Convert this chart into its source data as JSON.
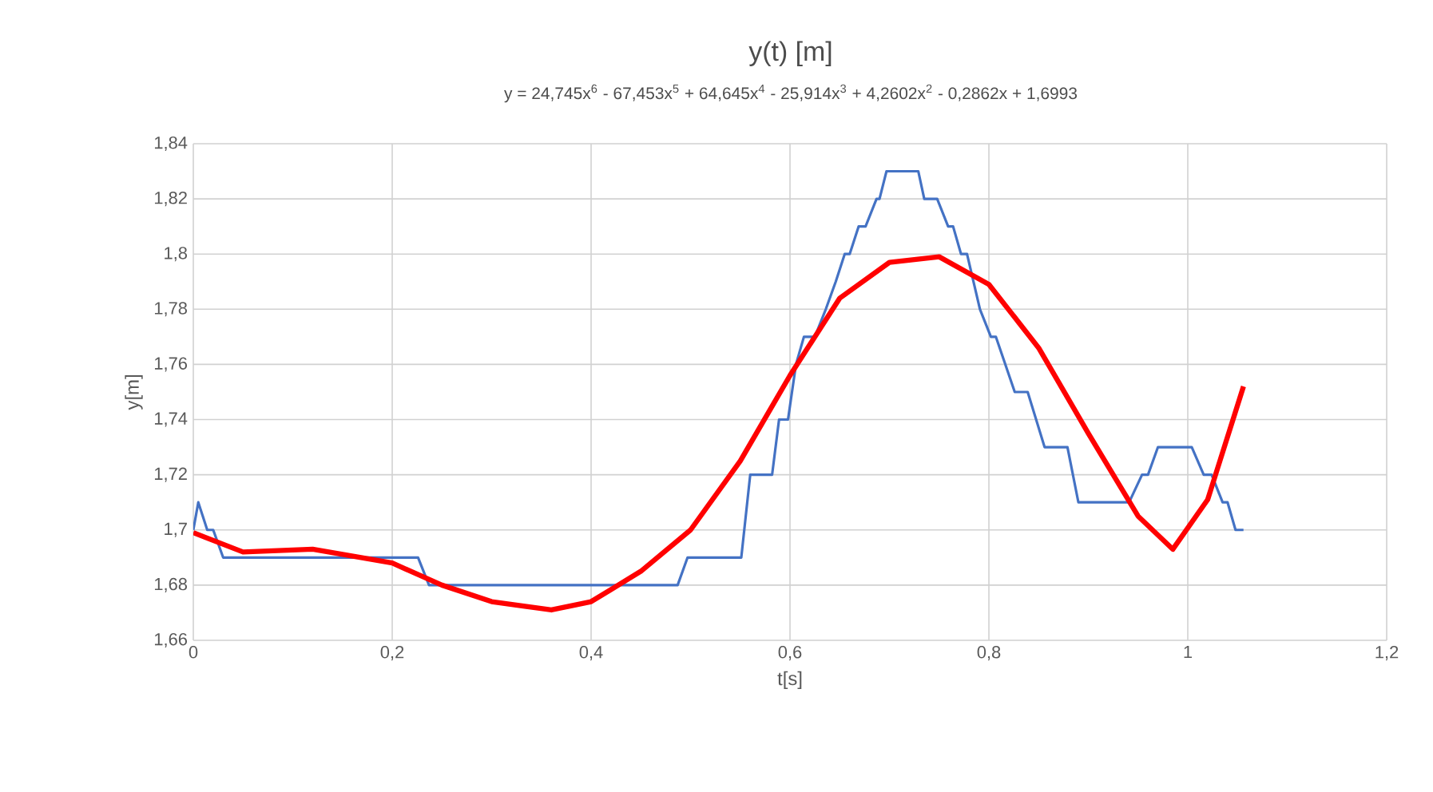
{
  "chart_data": {
    "type": "line",
    "title": "y(t) [m]",
    "subtitle": "y = 24,745x$^{6}$ - 67,453x$^{5}$ + 64,645x$^{4}$ - 25,914x$^{3}$ + 4,2602x$^{2}$ - 0,2862x + 1,6993",
    "xlabel": "t[s]",
    "ylabel": "y[m]",
    "xlim": [
      0,
      1.2
    ],
    "xticks": [
      0,
      {
        "value": 0.2,
        "label": "0,2"
      },
      {
        "value": 0.4,
        "label": "0,4"
      },
      {
        "value": 0.6,
        "label": "0,6"
      },
      {
        "value": 0.8,
        "label": "0,8"
      },
      1,
      {
        "value": 1.2,
        "label": "1,2"
      }
    ],
    "ylim": [
      1.66,
      1.84
    ],
    "yticks": [
      {
        "value": 1.66,
        "label": "1,66"
      },
      {
        "value": 1.68,
        "label": "1,68"
      },
      {
        "value": 1.7,
        "label": "1,7"
      },
      {
        "value": 1.72,
        "label": "1,72"
      },
      {
        "value": 1.74,
        "label": "1,74"
      },
      {
        "value": 1.76,
        "label": "1,76"
      },
      {
        "value": 1.78,
        "label": "1,78"
      },
      {
        "value": 1.8,
        "label": "1,8"
      },
      {
        "value": 1.82,
        "label": "1,82"
      },
      {
        "value": 1.84,
        "label": "1,84"
      }
    ],
    "grid": true,
    "series": [
      {
        "color": "#4472c4",
        "x": [
          0,
          0.005,
          0.014,
          0.02,
          0.03,
          0.223,
          0.226,
          0.237,
          0.487,
          0.497,
          0.551,
          0.56,
          0.582,
          0.589,
          0.598,
          0.606,
          0.614,
          0.625,
          0.636,
          0.646,
          0.655,
          0.66,
          0.669,
          0.676,
          0.687,
          0.69,
          0.697,
          0.729,
          0.735,
          0.748,
          0.759,
          0.764,
          0.772,
          0.778,
          0.791,
          0.802,
          0.807,
          0.826,
          0.839,
          0.856,
          0.879,
          0.89,
          0.941,
          0.954,
          0.96,
          0.97,
          1.004,
          1.016,
          1.024,
          1.035,
          1.04,
          1.048,
          1.056
        ],
        "values": [
          1.7,
          1.71,
          1.7,
          1.7,
          1.69,
          1.69,
          1.69,
          1.68,
          1.68,
          1.69,
          1.69,
          1.72,
          1.72,
          1.74,
          1.74,
          1.76,
          1.77,
          1.77,
          1.78,
          1.79,
          1.8,
          1.8,
          1.81,
          1.81,
          1.82,
          1.82,
          1.83,
          1.83,
          1.82,
          1.82,
          1.81,
          1.81,
          1.8,
          1.8,
          1.78,
          1.77,
          1.77,
          1.75,
          1.75,
          1.73,
          1.73,
          1.71,
          1.71,
          1.72,
          1.72,
          1.73,
          1.73,
          1.72,
          1.72,
          1.71,
          1.71,
          1.7,
          1.7
        ]
      },
      {
        "color": "#ff0000",
        "x": [
          0,
          0.05,
          0.12,
          0.2,
          0.25,
          0.3,
          0.36,
          0.4,
          0.45,
          0.5,
          0.55,
          0.6,
          0.65,
          0.7,
          0.75,
          0.8,
          0.85,
          0.9,
          0.95,
          0.985,
          1.02,
          1.056
        ],
        "values": [
          1.699,
          1.692,
          1.693,
          1.688,
          1.68,
          1.674,
          1.671,
          1.674,
          1.685,
          1.7,
          1.725,
          1.756,
          1.784,
          1.797,
          1.799,
          1.789,
          1.766,
          1.735,
          1.705,
          1.693,
          1.711,
          1.752
        ]
      }
    ]
  }
}
